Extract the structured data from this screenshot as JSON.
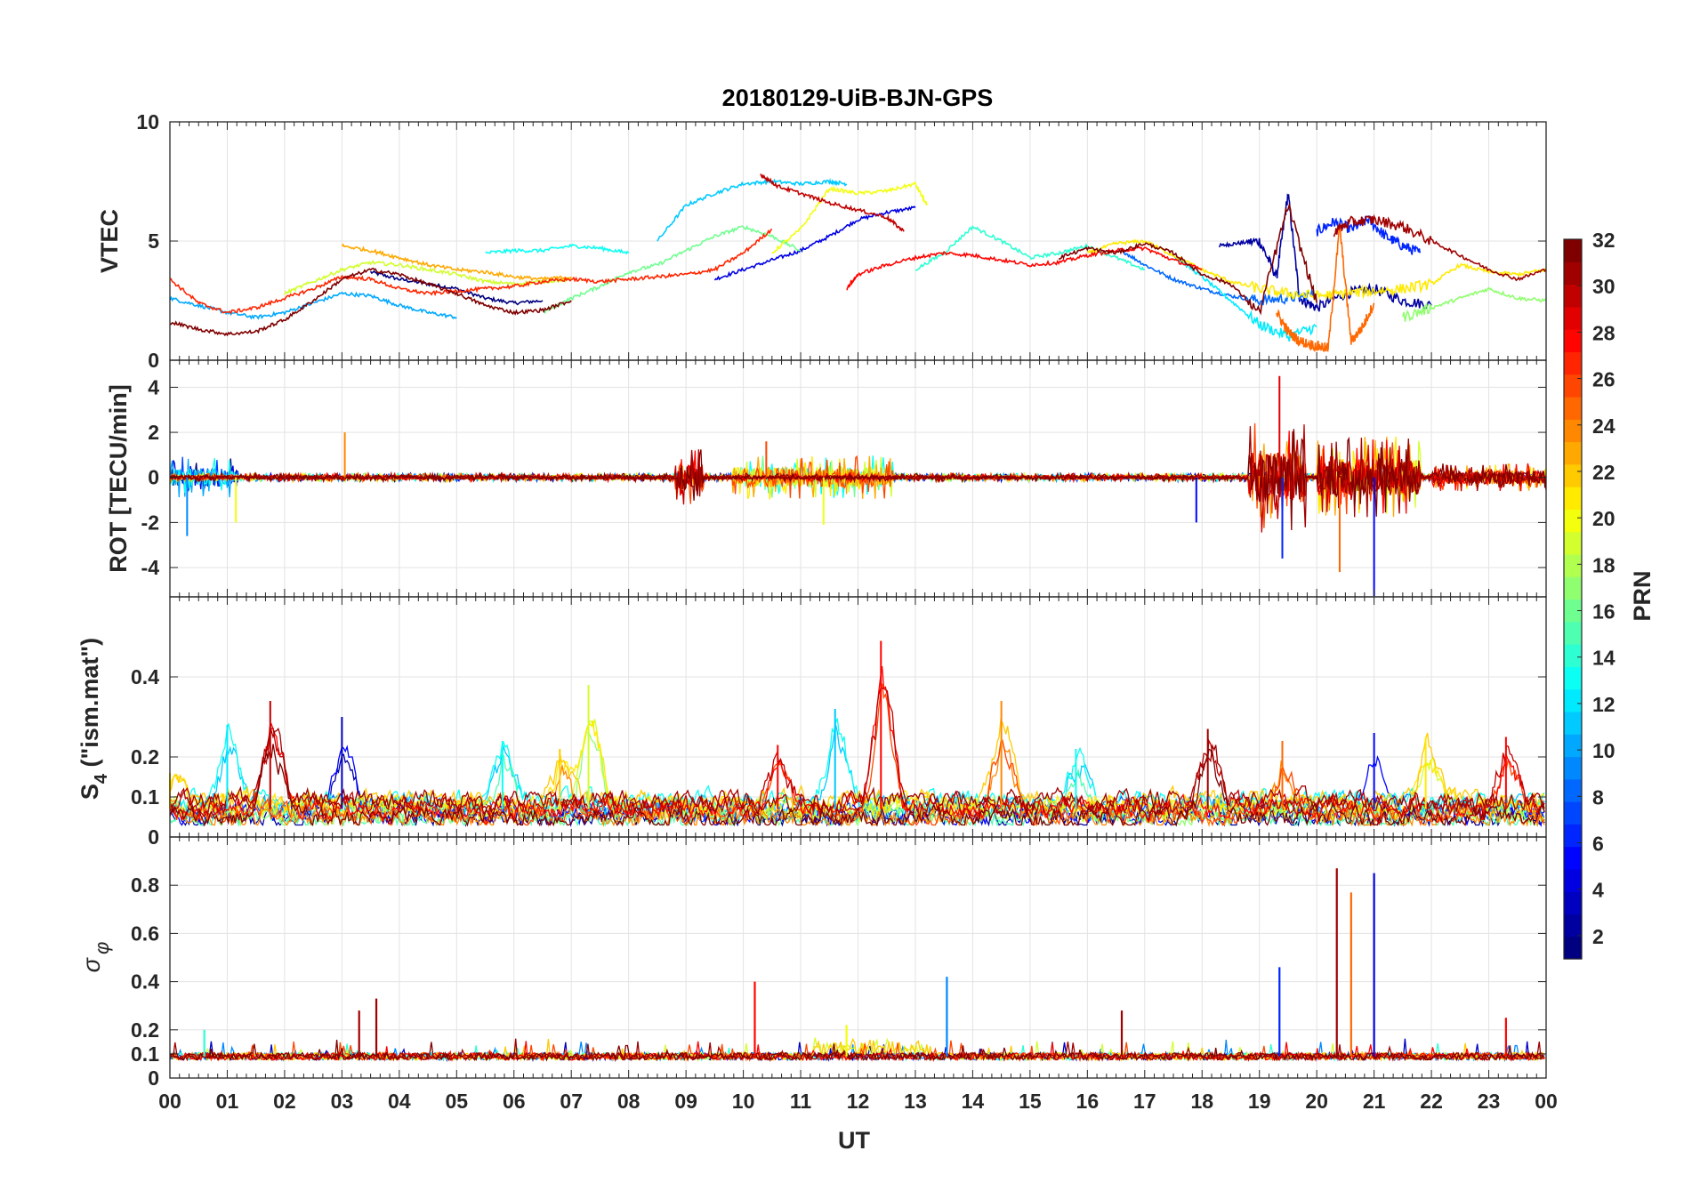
{
  "figure": {
    "title": "20180129-UiB-BJN-GPS",
    "xlabel": "UT",
    "colorbar_label": "PRN"
  },
  "chart_data": [
    {
      "type": "line",
      "panel": "VTEC",
      "ylabel": "VTEC",
      "ylim": [
        0,
        10
      ],
      "yticks": [
        "0",
        "5",
        "10"
      ],
      "xlim": [
        0,
        24
      ],
      "xticks": [
        "00",
        "01",
        "02",
        "03",
        "04",
        "05",
        "06",
        "07",
        "08",
        "09",
        "10",
        "11",
        "12",
        "13",
        "14",
        "15",
        "16",
        "17",
        "18",
        "19",
        "20",
        "21",
        "22",
        "23",
        "00"
      ],
      "grid": true,
      "series_by": "PRN (colormap jet, 1-32)",
      "series": [
        {
          "prn": 1,
          "x": [
            3.5,
            4,
            4.5,
            5,
            5.5,
            6,
            6.5
          ],
          "y": [
            3.7,
            3.4,
            3.2,
            3.0,
            2.6,
            2.4,
            2.5
          ]
        },
        {
          "prn": 2,
          "x": [
            18.3,
            18.6,
            19,
            19.3,
            19.5,
            19.7,
            20,
            20.5,
            21,
            21.5,
            22
          ],
          "y": [
            4.8,
            4.9,
            5.0,
            3.5,
            7.0,
            2.6,
            2.2,
            2.8,
            3.0,
            2.5,
            2.3
          ]
        },
        {
          "prn": 4,
          "x": [
            9.5,
            10,
            10.5,
            11,
            11.5,
            12,
            12.5,
            13
          ],
          "y": [
            3.4,
            3.8,
            4.2,
            4.6,
            5.2,
            5.9,
            6.2,
            6.4
          ]
        },
        {
          "prn": 6,
          "x": [
            20,
            20.3,
            20.6,
            20.9,
            21.2,
            21.5,
            21.8
          ],
          "y": [
            5.4,
            5.8,
            5.5,
            5.9,
            5.2,
            4.8,
            4.5
          ]
        },
        {
          "prn": 8,
          "x": [
            16.6,
            17,
            17.5,
            18,
            18.5,
            19,
            19.5,
            20
          ],
          "y": [
            4.6,
            4.0,
            3.4,
            3.0,
            2.7,
            2.5,
            2.6,
            2.8
          ]
        },
        {
          "prn": 10,
          "x": [
            0,
            0.5,
            1,
            1.5,
            2,
            2.5,
            3,
            3.5,
            4,
            4.5,
            5
          ],
          "y": [
            2.6,
            2.3,
            2.0,
            1.8,
            2.0,
            2.4,
            2.8,
            2.7,
            2.3,
            2.0,
            1.8
          ]
        },
        {
          "prn": 11,
          "x": [
            8.5,
            9,
            9.5,
            10,
            10.5,
            11,
            11.5,
            11.8
          ],
          "y": [
            5.0,
            6.5,
            7.0,
            7.4,
            7.5,
            7.4,
            7.5,
            7.4
          ]
        },
        {
          "prn": 12,
          "x": [
            17.5,
            18,
            18.5,
            19,
            19.5,
            20
          ],
          "y": [
            4.4,
            3.5,
            2.5,
            1.5,
            1.0,
            1.4
          ]
        },
        {
          "prn": 13,
          "x": [
            5.5,
            6,
            6.5,
            7,
            7.5,
            8
          ],
          "y": [
            4.5,
            4.6,
            4.6,
            4.8,
            4.7,
            4.5
          ]
        },
        {
          "prn": 14,
          "x": [
            13,
            13.5,
            14,
            14.5,
            15,
            15.5,
            16,
            16.5,
            17
          ],
          "y": [
            3.8,
            4.5,
            5.6,
            5.0,
            4.3,
            4.5,
            4.8,
            4.3,
            3.8
          ]
        },
        {
          "prn": 16,
          "x": [
            6.5,
            7,
            7.5,
            8,
            8.5,
            9,
            9.5,
            10,
            10.5,
            11
          ],
          "y": [
            2.0,
            2.6,
            3.1,
            3.7,
            4.0,
            4.6,
            5.2,
            5.6,
            5.2,
            4.6
          ]
        },
        {
          "prn": 17,
          "x": [
            21.5,
            22,
            22.5,
            23,
            23.5,
            24
          ],
          "y": [
            1.8,
            2.2,
            2.6,
            3.0,
            2.6,
            2.5
          ]
        },
        {
          "prn": 19,
          "x": [
            2,
            2.5,
            3,
            3.5,
            4,
            4.5,
            5,
            5.5,
            6,
            6.5,
            7
          ],
          "y": [
            2.8,
            3.3,
            3.8,
            4.1,
            4.0,
            3.8,
            3.6,
            3.3,
            3.2,
            3.3,
            3.4
          ]
        },
        {
          "prn": 20,
          "x": [
            10.5,
            11,
            11.5,
            12,
            12.5,
            13,
            13.2
          ],
          "y": [
            4.5,
            5.5,
            7.2,
            7.0,
            7.1,
            7.4,
            6.5
          ]
        },
        {
          "prn": 21,
          "x": [
            16,
            16.5,
            17,
            17.5,
            18,
            18.5,
            19,
            19.5,
            20,
            20.5,
            21,
            21.5,
            22,
            22.5,
            23,
            23.5,
            24
          ],
          "y": [
            4.5,
            4.9,
            5.0,
            4.4,
            3.8,
            3.3,
            3.0,
            2.8,
            2.7,
            2.8,
            2.9,
            3.0,
            3.2,
            4.0,
            3.7,
            3.6,
            3.8
          ]
        },
        {
          "prn": 23,
          "x": [
            3,
            3.5,
            4,
            4.5,
            5,
            5.5,
            6,
            6.5,
            7
          ],
          "y": [
            4.8,
            4.6,
            4.3,
            4.0,
            3.8,
            3.7,
            3.5,
            3.4,
            3.5
          ]
        },
        {
          "prn": 25,
          "x": [
            19.3,
            19.5,
            19.7,
            20,
            20.2,
            20.4,
            20.6,
            20.8,
            21
          ],
          "y": [
            2.0,
            1.2,
            0.8,
            0.6,
            0.5,
            5.6,
            0.8,
            1.4,
            2.4
          ]
        },
        {
          "prn": 27,
          "x": [
            0,
            0.5,
            1,
            1.5,
            2,
            2.5,
            3,
            3.5,
            4,
            4.5,
            5,
            5.5,
            6,
            6.5,
            7,
            7.5,
            8,
            8.5,
            9,
            9.5,
            10,
            10.5
          ],
          "y": [
            3.4,
            2.4,
            2.0,
            2.2,
            2.6,
            3.0,
            3.5,
            3.4,
            3.0,
            2.8,
            2.9,
            3.0,
            3.1,
            3.3,
            3.4,
            3.3,
            3.4,
            3.5,
            3.6,
            3.8,
            4.5,
            5.5
          ]
        },
        {
          "prn": 28,
          "x": [
            11.8,
            12,
            12.5,
            13,
            13.5,
            14,
            14.5,
            15,
            15.5,
            16,
            16.5,
            17,
            17.5,
            18
          ],
          "y": [
            3.0,
            3.6,
            4.0,
            4.3,
            4.5,
            4.4,
            4.2,
            4.0,
            4.1,
            4.4,
            4.6,
            4.7,
            4.2,
            3.8
          ]
        },
        {
          "prn": 30,
          "x": [
            10.3,
            10.6,
            11,
            11.5,
            12,
            12.5,
            12.8
          ],
          "y": [
            7.8,
            7.3,
            7.0,
            6.6,
            6.3,
            6.0,
            5.4
          ]
        },
        {
          "prn": 31,
          "x": [
            20.3,
            20.6,
            21,
            21.5,
            22,
            22.5,
            23,
            23.5,
            24
          ],
          "y": [
            5.4,
            5.8,
            5.9,
            5.6,
            5.0,
            4.4,
            3.8,
            3.4,
            3.8
          ]
        },
        {
          "prn": 32,
          "x": [
            0,
            0.5,
            1,
            1.5,
            2,
            2.5,
            3,
            3.5,
            4,
            4.5,
            5,
            5.5,
            6,
            6.5,
            7
          ],
          "y": [
            1.6,
            1.3,
            1.1,
            1.2,
            1.7,
            2.5,
            3.4,
            3.8,
            3.6,
            3.2,
            2.8,
            2.3,
            2.0,
            2.1,
            2.5
          ]
        },
        {
          "prn": 32,
          "x": [
            15.5,
            16,
            16.5,
            17,
            17.5,
            18,
            18.5,
            19,
            19.5,
            20
          ],
          "y": [
            4.3,
            4.7,
            4.5,
            4.9,
            4.5,
            3.6,
            3.2,
            2.0,
            6.5,
            2.4
          ]
        }
      ]
    },
    {
      "type": "line",
      "panel": "ROT",
      "ylabel": "ROT [TECU/min]",
      "ylim": [
        -5.3,
        5.2
      ],
      "yticks": [
        "-4",
        "-2",
        "0",
        "2",
        "4"
      ],
      "grid": true,
      "description_values": {
        "baseline": 0,
        "max": 4.5,
        "min": -5.3
      },
      "bursts": [
        {
          "x": [
            0,
            1.2
          ],
          "amp": 1.3,
          "prn": 7
        },
        {
          "x": [
            8.8,
            9.3
          ],
          "amp": 1.8,
          "prn": 30
        },
        {
          "x": [
            9.8,
            12.6
          ],
          "amp": 1.4,
          "prn": 20
        },
        {
          "x": [
            18.8,
            19.8
          ],
          "amp": 3.5,
          "prn": 29
        },
        {
          "x": [
            20,
            21.8
          ],
          "amp": 2.6,
          "prn": 25
        },
        {
          "x": [
            22,
            24
          ],
          "amp": 0.9,
          "prn": 28
        }
      ],
      "spikes": [
        {
          "x": 0.3,
          "y": -2.6,
          "prn": 9
        },
        {
          "x": 1.15,
          "y": -2.0,
          "prn": 20
        },
        {
          "x": 11.4,
          "y": -2.1,
          "prn": 20
        },
        {
          "x": 19.35,
          "y": 4.5,
          "prn": 29
        },
        {
          "x": 19.4,
          "y": -3.6,
          "prn": 6
        },
        {
          "x": 20.4,
          "y": -4.2,
          "prn": 25
        },
        {
          "x": 21.0,
          "y": -5.3,
          "prn": 5
        },
        {
          "x": 17.9,
          "y": -2.0,
          "prn": 5
        },
        {
          "x": 3.05,
          "y": 2.0,
          "prn": 24
        },
        {
          "x": 10.4,
          "y": 1.6,
          "prn": 26
        }
      ]
    },
    {
      "type": "line",
      "panel": "S4",
      "ylabel": "S4 (\"ism.mat\")",
      "ylabel_main": "S",
      "ylabel_sub": "4",
      "ylabel_rest": " (\"ism.mat\")",
      "ylim": [
        0,
        0.6
      ],
      "yticks": [
        "0",
        "0.1",
        "0.2",
        "0.4"
      ],
      "grid": true,
      "peaks": [
        {
          "x": 0.0,
          "y": 0.16,
          "prn": 22
        },
        {
          "x": 1.0,
          "y": 0.28,
          "prn": 12
        },
        {
          "x": 1.75,
          "y": 0.34,
          "prn": 30
        },
        {
          "x": 3.0,
          "y": 0.3,
          "prn": 3
        },
        {
          "x": 5.8,
          "y": 0.24,
          "prn": 13
        },
        {
          "x": 7.3,
          "y": 0.38,
          "prn": 19
        },
        {
          "x": 6.8,
          "y": 0.22,
          "prn": 22
        },
        {
          "x": 10.6,
          "y": 0.23,
          "prn": 28
        },
        {
          "x": 11.6,
          "y": 0.32,
          "prn": 11
        },
        {
          "x": 12.4,
          "y": 0.49,
          "prn": 28
        },
        {
          "x": 14.5,
          "y": 0.34,
          "prn": 24
        },
        {
          "x": 15.8,
          "y": 0.22,
          "prn": 13
        },
        {
          "x": 18.1,
          "y": 0.27,
          "prn": 31
        },
        {
          "x": 19.4,
          "y": 0.24,
          "prn": 25
        },
        {
          "x": 21.0,
          "y": 0.26,
          "prn": 5
        },
        {
          "x": 21.9,
          "y": 0.25,
          "prn": 21
        },
        {
          "x": 23.3,
          "y": 0.25,
          "prn": 28
        }
      ],
      "baseline": 0.07
    },
    {
      "type": "line",
      "panel": "sigma_phi",
      "ylabel": "σ φ",
      "ylabel_main": "σ",
      "ylabel_sub": "φ",
      "ylim": [
        0,
        1
      ],
      "yticks": [
        "0",
        "0.1",
        "0.2",
        "0.4",
        "0.6",
        "0.8"
      ],
      "grid": true,
      "baseline": 0.09,
      "peaks": [
        {
          "x": 0.6,
          "y": 0.2,
          "prn": 14
        },
        {
          "x": 3.3,
          "y": 0.28,
          "prn": 31
        },
        {
          "x": 3.6,
          "y": 0.33,
          "prn": 31
        },
        {
          "x": 10.2,
          "y": 0.4,
          "prn": 28
        },
        {
          "x": 13.55,
          "y": 0.42,
          "prn": 9
        },
        {
          "x": 11.8,
          "y": 0.22,
          "prn": 20
        },
        {
          "x": 16.6,
          "y": 0.28,
          "prn": 31
        },
        {
          "x": 19.35,
          "y": 0.46,
          "prn": 6
        },
        {
          "x": 20.35,
          "y": 0.87,
          "prn": 31
        },
        {
          "x": 20.6,
          "y": 0.77,
          "prn": 25
        },
        {
          "x": 21.0,
          "y": 0.85,
          "prn": 4
        },
        {
          "x": 23.3,
          "y": 0.25,
          "prn": 28
        }
      ]
    }
  ],
  "colorbar": {
    "colormap": "jet",
    "range": [
      1,
      32
    ],
    "ticks": [
      "2",
      "4",
      "6",
      "8",
      "10",
      "12",
      "14",
      "16",
      "18",
      "20",
      "22",
      "24",
      "26",
      "28",
      "30",
      "32"
    ]
  }
}
